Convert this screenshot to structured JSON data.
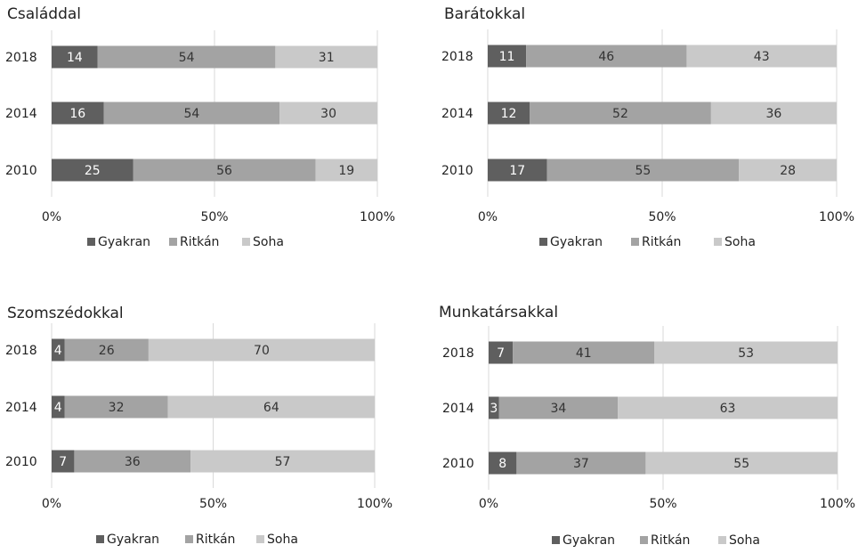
{
  "colors": {
    "Gyakran": "#5f5f5f",
    "Ritkán": "#a3a3a3",
    "Soha": "#c9c9c9"
  },
  "chart_data": [
    {
      "type": "bar",
      "orientation": "horizontal-stacked-100",
      "title": "Családdal",
      "categories": [
        "2018",
        "2014",
        "2010"
      ],
      "series": [
        {
          "name": "Gyakran",
          "values": [
            14,
            16,
            25
          ]
        },
        {
          "name": "Ritkán",
          "values": [
            54,
            54,
            56
          ]
        },
        {
          "name": "Soha",
          "values": [
            31,
            30,
            19
          ]
        }
      ],
      "xticks": [
        "0%",
        "50%",
        "100%"
      ],
      "xlim": [
        0,
        100
      ],
      "legend": "bottom"
    },
    {
      "type": "bar",
      "orientation": "horizontal-stacked-100",
      "title": "Barátokkal",
      "categories": [
        "2018",
        "2014",
        "2010"
      ],
      "series": [
        {
          "name": "Gyakran",
          "values": [
            11,
            12,
            17
          ]
        },
        {
          "name": "Ritkán",
          "values": [
            46,
            52,
            55
          ]
        },
        {
          "name": "Soha",
          "values": [
            43,
            36,
            28
          ]
        }
      ],
      "xticks": [
        "0%",
        "50%",
        "100%"
      ],
      "xlim": [
        0,
        100
      ],
      "legend": "bottom"
    },
    {
      "type": "bar",
      "orientation": "horizontal-stacked-100",
      "title": "Szomszédokkal",
      "categories": [
        "2018",
        "2014",
        "2010"
      ],
      "series": [
        {
          "name": "Gyakran",
          "values": [
            4,
            4,
            7
          ]
        },
        {
          "name": "Ritkán",
          "values": [
            26,
            32,
            36
          ]
        },
        {
          "name": "Soha",
          "values": [
            70,
            64,
            57
          ]
        }
      ],
      "xticks": [
        "0%",
        "50%",
        "100%"
      ],
      "xlim": [
        0,
        100
      ],
      "legend": "bottom"
    },
    {
      "type": "bar",
      "orientation": "horizontal-stacked-100",
      "title": "Munkatársakkal",
      "categories": [
        "2018",
        "2014",
        "2010"
      ],
      "series": [
        {
          "name": "Gyakran",
          "values": [
            7,
            3,
            8
          ]
        },
        {
          "name": "Ritkán",
          "values": [
            41,
            34,
            37
          ]
        },
        {
          "name": "Soha",
          "values": [
            53,
            63,
            55
          ]
        }
      ],
      "xticks": [
        "0%",
        "50%",
        "100%"
      ],
      "xlim": [
        0,
        100
      ],
      "legend": "bottom"
    }
  ]
}
